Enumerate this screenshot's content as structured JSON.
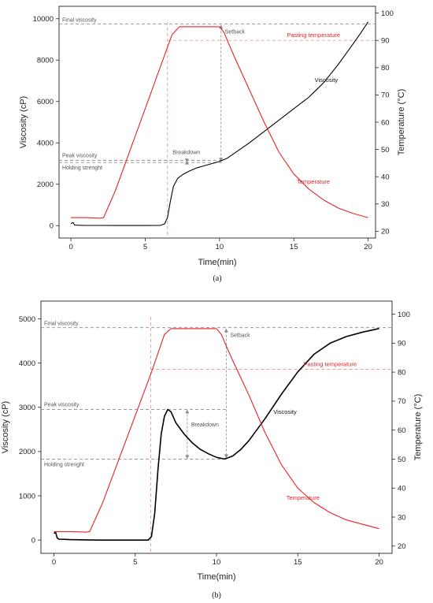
{
  "colors": {
    "viscosity": "#000000",
    "temperature": "#e8232a",
    "guide": "#8c8c8c",
    "pasting_guide": "#f08a8a"
  },
  "chart_data": [
    {
      "panel_label": "(a)",
      "type": "line",
      "xlabel": "Time(min)",
      "ylabel_left": "Viscosity (cP)",
      "ylabel_right": "Temperature (°C)",
      "xlim": [
        -0.8,
        20.5
      ],
      "ylim_left": [
        -600,
        10600
      ],
      "ylim_right": [
        17.5,
        102.5
      ],
      "xticks": [
        0,
        5,
        10,
        15,
        20
      ],
      "yticks_left": [
        0,
        2000,
        4000,
        6000,
        8000,
        10000
      ],
      "yticks_right": [
        20,
        30,
        40,
        50,
        60,
        70,
        80,
        90,
        100
      ],
      "grid": false,
      "series": [
        {
          "name": "Viscosity",
          "axis": "left",
          "color": "#000000",
          "x": [
            0,
            0.15,
            0.25,
            0.4,
            1,
            2,
            3,
            4,
            5,
            6,
            6.3,
            6.5,
            6.7,
            6.9,
            7.2,
            7.6,
            8,
            8.5,
            9,
            9.5,
            10,
            10.5,
            11,
            12,
            13,
            14,
            15,
            16,
            16.5,
            17,
            17.5,
            18,
            18.5,
            19,
            19.5,
            20
          ],
          "y": [
            100,
            150,
            30,
            20,
            10,
            10,
            5,
            5,
            5,
            10,
            80,
            400,
            1200,
            1900,
            2300,
            2500,
            2650,
            2800,
            2900,
            3000,
            3100,
            3250,
            3500,
            4000,
            4550,
            5100,
            5650,
            6200,
            6550,
            6900,
            7350,
            7800,
            8300,
            8800,
            9300,
            9850
          ]
        },
        {
          "name": "Temperature",
          "axis": "right",
          "color": "#e8232a",
          "x": [
            0,
            1,
            2,
            2.2,
            3,
            4,
            5,
            6,
            6.8,
            7.3,
            8,
            9,
            10,
            10.3,
            10.6,
            11,
            12,
            13,
            14,
            15,
            16,
            17,
            18,
            19,
            20
          ],
          "y": [
            25,
            25,
            24.8,
            25,
            35,
            50,
            65,
            80,
            92,
            95,
            95,
            95,
            95,
            93,
            89,
            84,
            72,
            60,
            49,
            41,
            35.5,
            31.5,
            28.5,
            26.5,
            25
          ]
        }
      ],
      "annotations": {
        "final_viscosity": {
          "label": "Final viscosity",
          "y": 9750
        },
        "peak_viscosity": {
          "label": "Peak viscosity",
          "y": 3150
        },
        "holding_strength": {
          "label": "Holding strenght",
          "y": 3050
        },
        "setback": {
          "label": "Setback",
          "x": 10.1
        },
        "breakdown": {
          "label": "Breakdown",
          "x": 7.8
        },
        "pasting_temperature": {
          "label": "Pasting temperature",
          "temp": 90,
          "x": 6.5
        },
        "viscosity_label": {
          "label": "Viscosity",
          "x": 16.4,
          "y": 6950
        },
        "temperature_label": {
          "label": "Temperature",
          "x": 15.2,
          "y": 37.5
        }
      }
    },
    {
      "panel_label": "(b)",
      "type": "line",
      "xlabel": "Time(min)",
      "ylabel_left": "Viscosity (cP)",
      "ylabel_right": "Temperature (°C)",
      "xlim": [
        -0.8,
        20.8
      ],
      "ylim_left": [
        -300,
        5400
      ],
      "ylim_right": [
        17.5,
        104.5
      ],
      "xticks": [
        0,
        5,
        10,
        15,
        20
      ],
      "yticks_left": [
        0,
        1000,
        2000,
        3000,
        4000,
        5000
      ],
      "yticks_right": [
        20,
        30,
        40,
        50,
        60,
        70,
        80,
        90,
        100
      ],
      "grid": false,
      "series": [
        {
          "name": "Viscosity",
          "axis": "left",
          "color": "#000000",
          "x": [
            0,
            0.1,
            0.2,
            0.3,
            1,
            2,
            3,
            4,
            5,
            5.8,
            6.0,
            6.2,
            6.4,
            6.6,
            6.8,
            7.0,
            7.2,
            7.5,
            8,
            8.5,
            9,
            9.5,
            10,
            10.5,
            11,
            11.5,
            12,
            13,
            14,
            15,
            16,
            17,
            18,
            19,
            20
          ],
          "y": [
            150,
            180,
            50,
            20,
            10,
            5,
            0,
            0,
            0,
            0,
            80,
            600,
            1600,
            2400,
            2800,
            2950,
            2900,
            2650,
            2400,
            2200,
            2050,
            1950,
            1870,
            1830,
            1900,
            2050,
            2250,
            2750,
            3300,
            3800,
            4200,
            4450,
            4600,
            4700,
            4780
          ]
        },
        {
          "name": "Temperature",
          "axis": "right",
          "color": "#e8232a",
          "x": [
            0,
            1,
            2,
            2.2,
            3,
            4,
            5,
            6,
            6.8,
            7.2,
            8,
            9,
            10,
            10.3,
            10.6,
            11,
            12,
            13,
            14,
            15,
            16,
            17,
            18,
            19,
            20
          ],
          "y": [
            25,
            25,
            24.8,
            25,
            35,
            50,
            65,
            80,
            93,
            95,
            95,
            95,
            95,
            93,
            89,
            84,
            72,
            59,
            48,
            40,
            35,
            31.5,
            29,
            27.5,
            26
          ]
        }
      ],
      "annotations": {
        "final_viscosity": {
          "label": "Final viscosity",
          "y": 4800
        },
        "peak_viscosity": {
          "label": "Peak viscosity",
          "y": 2950
        },
        "holding_strength": {
          "label": "Holding strenght",
          "y": 1830
        },
        "setback": {
          "label": "Setback",
          "x": 10.6
        },
        "breakdown": {
          "label": "Breakdown",
          "x": 8.2
        },
        "pasting_temperature": {
          "label": "Pasting temperature",
          "temp": 81,
          "x": 5.95
        },
        "viscosity_label": {
          "label": "Viscosity",
          "x": 13.5,
          "y": 2850
        },
        "temperature_label": {
          "label": "Temperature",
          "x": 14.3,
          "y": 36
        }
      }
    }
  ]
}
